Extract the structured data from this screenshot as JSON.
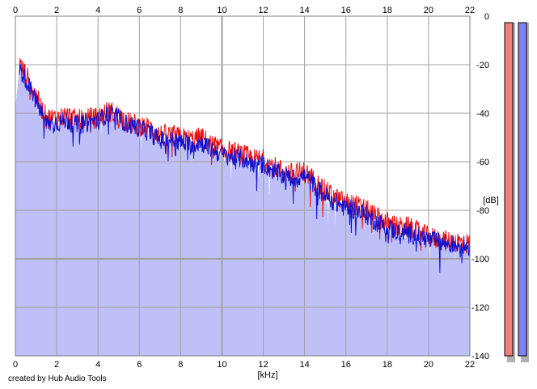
{
  "chart_data": {
    "type": "area",
    "xlabel": "[kHz]",
    "ylabel": "[dB]",
    "xlim": [
      0,
      22
    ],
    "ylim": [
      -140,
      0
    ],
    "x_ticks": [
      "0",
      "2",
      "4",
      "6",
      "8",
      "10",
      "12",
      "14",
      "16",
      "18",
      "20",
      "22"
    ],
    "y_ticks": [
      "0",
      "-20",
      "-40",
      "-60",
      "-80",
      "-100",
      "-120",
      "-140"
    ],
    "grid": true,
    "series": [
      {
        "color": "#e81010",
        "x": [
          0.2,
          0.5,
          1.0,
          1.5,
          2.0,
          2.5,
          3.0,
          3.5,
          4.0,
          4.5,
          5.0,
          5.5,
          6.0,
          6.5,
          7.0,
          7.5,
          8.0,
          8.5,
          9.0,
          9.5,
          10.0,
          10.5,
          11.0,
          11.5,
          12.0,
          12.5,
          13.0,
          13.5,
          14.0,
          14.5,
          15.0,
          15.5,
          16.0,
          16.5,
          17.0,
          17.5,
          18.0,
          18.5,
          19.0,
          19.5,
          20.0,
          20.5,
          21.0,
          21.5,
          22.0
        ],
        "y": [
          -20,
          -24,
          -33,
          -42,
          -42,
          -41,
          -43,
          -42,
          -42,
          -39,
          -41,
          -44,
          -45,
          -46,
          -49,
          -49,
          -50,
          -51,
          -50,
          -53,
          -55,
          -56,
          -57,
          -59,
          -59,
          -62,
          -64,
          -65,
          -64,
          -68,
          -72,
          -75,
          -77,
          -78,
          -80,
          -83,
          -85,
          -87,
          -87,
          -89,
          -91,
          -92,
          -93,
          -93,
          -94
        ]
      },
      {
        "color": "#1010d0",
        "x": [
          0.2,
          0.5,
          1.0,
          1.5,
          2.0,
          2.5,
          3.0,
          3.5,
          4.0,
          4.5,
          5.0,
          5.5,
          6.0,
          6.5,
          7.0,
          7.5,
          8.0,
          8.5,
          9.0,
          9.5,
          10.0,
          10.5,
          11.0,
          11.5,
          12.0,
          12.5,
          13.0,
          13.5,
          14.0,
          14.5,
          15.0,
          15.5,
          16.0,
          16.5,
          17.0,
          17.5,
          18.0,
          18.5,
          19.0,
          19.5,
          20.0,
          20.5,
          21.0,
          21.5,
          22.0
        ],
        "y": [
          -22,
          -26,
          -35,
          -44,
          -44,
          -43,
          -45,
          -44,
          -43,
          -40,
          -42,
          -45,
          -46,
          -48,
          -51,
          -51,
          -52,
          -53,
          -52,
          -55,
          -57,
          -58,
          -59,
          -61,
          -61,
          -64,
          -66,
          -67,
          -66,
          -70,
          -74,
          -77,
          -79,
          -80,
          -82,
          -85,
          -87,
          -89,
          -89,
          -91,
          -92,
          -93,
          -94,
          -94,
          -95
        ]
      }
    ],
    "meters": [
      {
        "color": "#f08080",
        "value": 0
      },
      {
        "color": "#8080f0",
        "value": 0
      }
    ]
  },
  "credit": "created by Hub Audio Tools"
}
